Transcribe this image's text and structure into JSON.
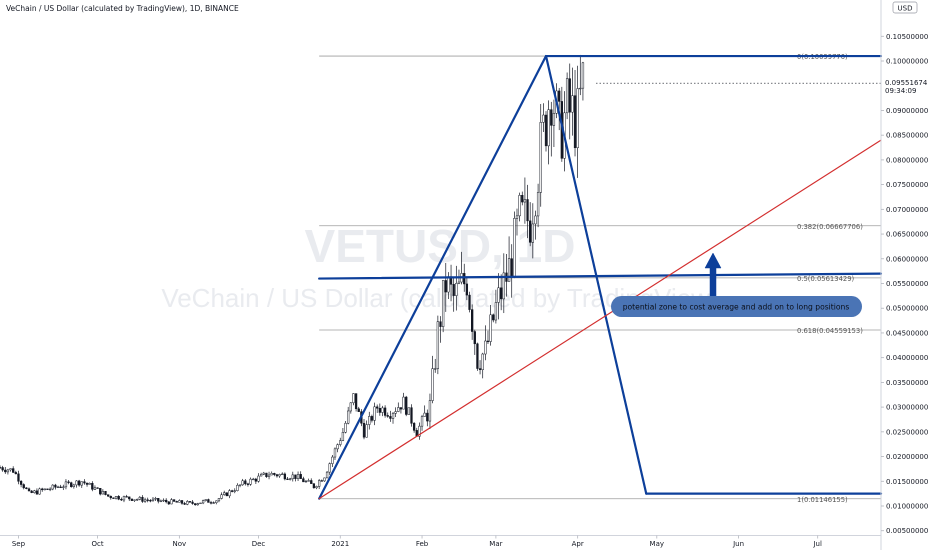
{
  "header": {
    "symbol_line": "VeChain / US Dollar (calculated by TradingView), 1D, BINANCE"
  },
  "watermark": {
    "ticker": "VETUSD, 1D",
    "name": "VeChain / US Dollar (calculated by TradingView)"
  },
  "price_axis": {
    "currency": "USD",
    "current_price": "0.09551674",
    "countdown": "09:34:09",
    "ticks": [
      "0.10500000",
      "0.10000000",
      "0.09000000",
      "0.08500000",
      "0.08000000",
      "0.07500000",
      "0.07000000",
      "0.06500000",
      "0.06000000",
      "0.05500000",
      "0.05000000",
      "0.04500000",
      "0.04000000",
      "0.03500000",
      "0.03000000",
      "0.02500000",
      "0.02000000",
      "0.01500000",
      "0.01000000",
      "0.00500000"
    ]
  },
  "time_axis": {
    "labels": [
      "Sep",
      "Oct",
      "Nov",
      "Dec",
      "2021",
      "Feb",
      "Mar",
      "Apr",
      "May",
      "Jun",
      "Jul"
    ]
  },
  "fib_levels": [
    {
      "label": "0(0.10099770)",
      "value": 0.1009977
    },
    {
      "label": "0.382(0.06667706)",
      "value": 0.06667706
    },
    {
      "label": "0.5(0.05613429)",
      "value": 0.05613429
    },
    {
      "label": "0.618(0.04559153)",
      "value": 0.04559153
    },
    {
      "label": "1(0.01146155)",
      "value": 0.01146155
    }
  ],
  "annotation": {
    "text": "potential zone to cost average and add on to long positions"
  },
  "colors": {
    "candle": "#131722",
    "drawing_blue": "#0d3f9a",
    "trendline_red": "#d32f2f",
    "callout_bg": "#4a74b5",
    "fib_gray": "#9e9e9e"
  },
  "chart_data": {
    "type": "candlestick",
    "title": "VeChain / US Dollar (calculated by TradingView), 1D, BINANCE",
    "x_start": "2020-08-25",
    "x_end": "2021-07-25",
    "ylim": [
      0.003,
      0.108
    ],
    "current_price": 0.09551674,
    "anchors": [
      {
        "date": "2020-08-25",
        "close": 0.0178
      },
      {
        "date": "2020-08-30",
        "close": 0.0172
      },
      {
        "date": "2020-09-05",
        "close": 0.0125
      },
      {
        "date": "2020-09-15",
        "close": 0.0138
      },
      {
        "date": "2020-09-25",
        "close": 0.015
      },
      {
        "date": "2020-10-05",
        "close": 0.012
      },
      {
        "date": "2020-10-20",
        "close": 0.0112
      },
      {
        "date": "2020-11-05",
        "close": 0.0105
      },
      {
        "date": "2020-11-15",
        "close": 0.0112
      },
      {
        "date": "2020-11-25",
        "close": 0.0145
      },
      {
        "date": "2020-12-05",
        "close": 0.0165
      },
      {
        "date": "2020-12-15",
        "close": 0.016
      },
      {
        "date": "2020-12-22",
        "close": 0.014
      },
      {
        "date": "2020-12-26",
        "close": 0.0162
      },
      {
        "date": "2021-01-02",
        "close": 0.025
      },
      {
        "date": "2021-01-06",
        "close": 0.032
      },
      {
        "date": "2021-01-10",
        "close": 0.025
      },
      {
        "date": "2021-01-15",
        "close": 0.03
      },
      {
        "date": "2021-01-20",
        "close": 0.029
      },
      {
        "date": "2021-01-25",
        "close": 0.031
      },
      {
        "date": "2021-01-30",
        "close": 0.025
      },
      {
        "date": "2021-02-04",
        "close": 0.03
      },
      {
        "date": "2021-02-07",
        "close": 0.045
      },
      {
        "date": "2021-02-10",
        "close": 0.055
      },
      {
        "date": "2021-02-13",
        "close": 0.052
      },
      {
        "date": "2021-02-18",
        "close": 0.056
      },
      {
        "date": "2021-02-22",
        "close": 0.04
      },
      {
        "date": "2021-02-25",
        "close": 0.041
      },
      {
        "date": "2021-03-01",
        "close": 0.05
      },
      {
        "date": "2021-03-06",
        "close": 0.058
      },
      {
        "date": "2021-03-10",
        "close": 0.068
      },
      {
        "date": "2021-03-14",
        "close": 0.068
      },
      {
        "date": "2021-03-18",
        "close": 0.082
      },
      {
        "date": "2021-03-22",
        "close": 0.095
      },
      {
        "date": "2021-03-25",
        "close": 0.085
      },
      {
        "date": "2021-03-28",
        "close": 0.09
      },
      {
        "date": "2021-04-01",
        "close": 0.088
      },
      {
        "date": "2021-04-03",
        "close": 0.0955
      }
    ],
    "drawings": [
      {
        "name": "up-leg",
        "from": [
          "2020-12-24",
          0.0115
        ],
        "to": [
          "2021-03-20",
          0.101
        ]
      },
      {
        "name": "projected-down-leg",
        "from": [
          "2021-03-20",
          0.101
        ],
        "to": [
          "2021-04-27",
          0.0125
        ]
      },
      {
        "name": "top-horizontal",
        "from": [
          "2021-03-20",
          0.101
        ],
        "to": [
          "2021-07-25",
          0.101
        ]
      },
      {
        "name": "bottom-horizontal",
        "from": [
          "2021-04-27",
          0.0125
        ],
        "to": [
          "2021-07-25",
          0.0125
        ]
      },
      {
        "name": "mid-horizontal",
        "from": [
          "2020-12-24",
          0.056
        ],
        "to": [
          "2021-07-25",
          0.057
        ]
      },
      {
        "name": "red-trendline",
        "from": [
          "2020-12-24",
          0.0115
        ],
        "to": [
          "2021-07-25",
          0.084
        ]
      }
    ]
  }
}
